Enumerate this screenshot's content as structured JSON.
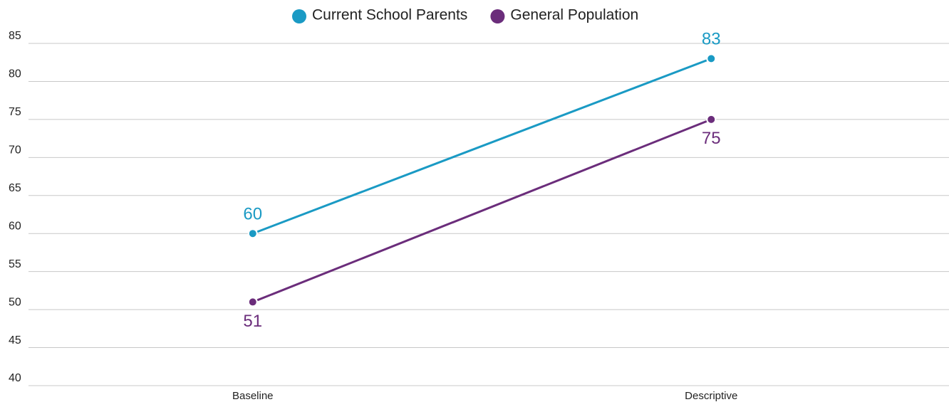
{
  "chart_data": {
    "type": "line",
    "categories": [
      "Baseline",
      "Descriptive"
    ],
    "series": [
      {
        "name": "Current School Parents",
        "color": "#1a9ac4",
        "values": [
          60,
          83
        ]
      },
      {
        "name": "General Population",
        "color": "#6b2d7b",
        "values": [
          51,
          75
        ]
      }
    ],
    "ylim": [
      40,
      85
    ],
    "yticks": [
      40,
      45,
      50,
      55,
      60,
      65,
      70,
      75,
      80,
      85
    ],
    "grid": true,
    "legend": "top"
  }
}
